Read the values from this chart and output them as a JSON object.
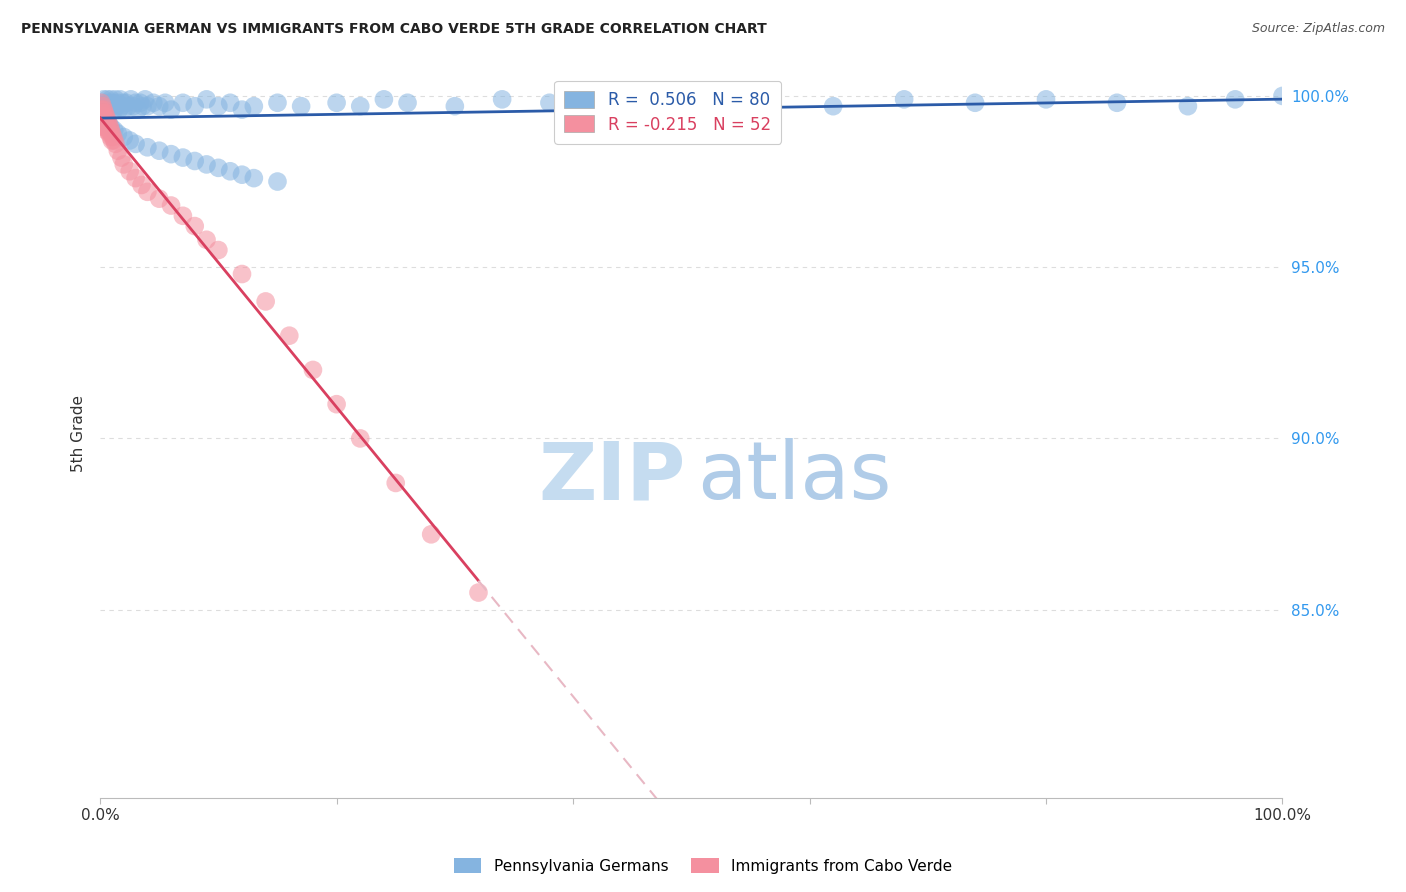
{
  "title": "PENNSYLVANIA GERMAN VS IMMIGRANTS FROM CABO VERDE 5TH GRADE CORRELATION CHART",
  "source": "Source: ZipAtlas.com",
  "ylabel": "5th Grade",
  "blue_R": 0.506,
  "blue_N": 80,
  "pink_R": -0.215,
  "pink_N": 52,
  "blue_color": "#85B4E0",
  "pink_color": "#F4909F",
  "blue_line_color": "#2B5BA8",
  "pink_line_color": "#D94060",
  "dashed_line_color": "#E8B8C4",
  "grid_color": "#DDDDDD",
  "watermark_zip": "#C5DCF0",
  "watermark_atlas": "#B0CCE8",
  "legend_label_blue": "Pennsylvania Germans",
  "legend_label_pink": "Immigrants from Cabo Verde",
  "xlim": [
    0.0,
    1.0
  ],
  "ylim": [
    0.795,
    1.008
  ],
  "yticks": [
    0.85,
    0.9,
    0.95,
    1.0
  ],
  "ytick_labels": [
    "85.0%",
    "90.0%",
    "95.0%",
    "100.0%"
  ],
  "blue_x": [
    0.002,
    0.003,
    0.004,
    0.005,
    0.006,
    0.007,
    0.008,
    0.009,
    0.01,
    0.011,
    0.012,
    0.013,
    0.014,
    0.015,
    0.016,
    0.017,
    0.018,
    0.019,
    0.02,
    0.022,
    0.024,
    0.026,
    0.028,
    0.03,
    0.032,
    0.034,
    0.036,
    0.038,
    0.04,
    0.045,
    0.05,
    0.055,
    0.06,
    0.07,
    0.08,
    0.09,
    0.1,
    0.11,
    0.12,
    0.13,
    0.15,
    0.17,
    0.2,
    0.22,
    0.24,
    0.26,
    0.3,
    0.34,
    0.38,
    0.42,
    0.5,
    0.56,
    0.62,
    0.68,
    0.74,
    0.8,
    0.86,
    0.92,
    0.96,
    1.0,
    0.003,
    0.005,
    0.007,
    0.009,
    0.012,
    0.015,
    0.02,
    0.025,
    0.03,
    0.04,
    0.05,
    0.06,
    0.07,
    0.08,
    0.09,
    0.1,
    0.11,
    0.12,
    0.13,
    0.15
  ],
  "blue_y": [
    0.997,
    0.999,
    0.998,
    0.996,
    0.999,
    0.997,
    0.998,
    0.999,
    0.997,
    0.998,
    0.996,
    0.999,
    0.997,
    0.998,
    0.996,
    0.999,
    0.997,
    0.998,
    0.996,
    0.998,
    0.997,
    0.999,
    0.997,
    0.998,
    0.996,
    0.998,
    0.997,
    0.999,
    0.997,
    0.998,
    0.997,
    0.998,
    0.996,
    0.998,
    0.997,
    0.999,
    0.997,
    0.998,
    0.996,
    0.997,
    0.998,
    0.997,
    0.998,
    0.997,
    0.999,
    0.998,
    0.997,
    0.999,
    0.998,
    0.997,
    0.999,
    0.998,
    0.997,
    0.999,
    0.998,
    0.999,
    0.998,
    0.997,
    0.999,
    1.0,
    0.994,
    0.993,
    0.992,
    0.991,
    0.99,
    0.989,
    0.988,
    0.987,
    0.986,
    0.985,
    0.984,
    0.983,
    0.982,
    0.981,
    0.98,
    0.979,
    0.978,
    0.977,
    0.976,
    0.975
  ],
  "pink_x": [
    0.001,
    0.001,
    0.001,
    0.001,
    0.002,
    0.002,
    0.002,
    0.002,
    0.003,
    0.003,
    0.003,
    0.004,
    0.004,
    0.004,
    0.005,
    0.005,
    0.005,
    0.006,
    0.006,
    0.007,
    0.007,
    0.008,
    0.008,
    0.009,
    0.009,
    0.01,
    0.01,
    0.011,
    0.012,
    0.013,
    0.015,
    0.018,
    0.02,
    0.025,
    0.03,
    0.035,
    0.04,
    0.05,
    0.06,
    0.07,
    0.08,
    0.09,
    0.1,
    0.12,
    0.14,
    0.16,
    0.18,
    0.2,
    0.22,
    0.25,
    0.28,
    0.32
  ],
  "pink_y": [
    0.998,
    0.996,
    0.994,
    0.992,
    0.997,
    0.995,
    0.993,
    0.991,
    0.996,
    0.994,
    0.992,
    0.995,
    0.993,
    0.991,
    0.994,
    0.992,
    0.99,
    0.993,
    0.991,
    0.992,
    0.99,
    0.991,
    0.989,
    0.99,
    0.988,
    0.989,
    0.987,
    0.988,
    0.987,
    0.986,
    0.984,
    0.982,
    0.98,
    0.978,
    0.976,
    0.974,
    0.972,
    0.97,
    0.968,
    0.965,
    0.962,
    0.958,
    0.955,
    0.948,
    0.94,
    0.93,
    0.92,
    0.91,
    0.9,
    0.887,
    0.872,
    0.855
  ]
}
